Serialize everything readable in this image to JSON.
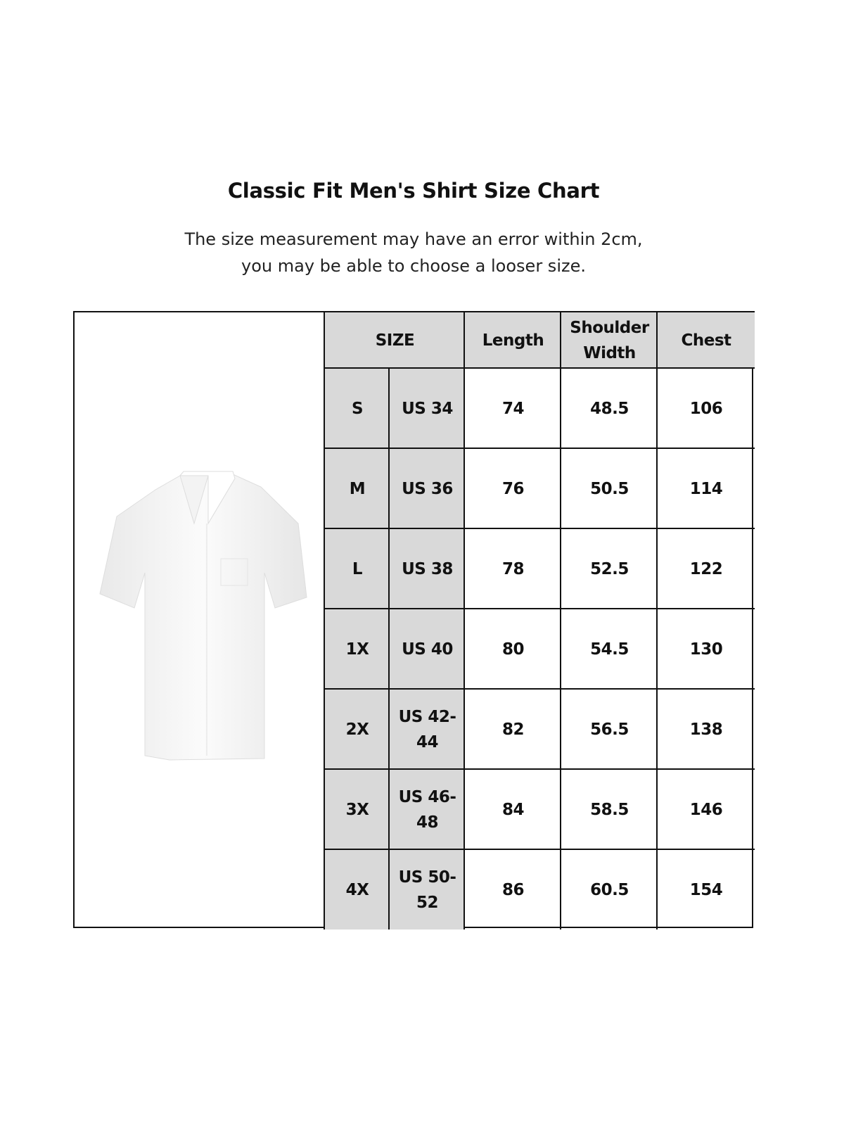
{
  "title": "Classic Fit Men's Shirt Size Chart",
  "subtitle": [
    "The size measurement may have an error within 2cm,",
    "you may be able to choose a looser size."
  ],
  "table": {
    "headers": [
      "SIZE",
      "Length",
      "Shoulder Width",
      "Chest"
    ],
    "rows": [
      [
        "S",
        "US 34",
        "74",
        "48.5",
        "106"
      ],
      [
        "M",
        "US 36",
        "76",
        "50.5",
        "114"
      ],
      [
        "L",
        "US 38",
        "78",
        "52.5",
        "122"
      ],
      [
        "1X",
        "US 40",
        "80",
        "54.5",
        "130"
      ],
      [
        "2X",
        "US 42-44",
        "82",
        "56.5",
        "138"
      ],
      [
        "3X",
        "US 46-48",
        "84",
        "58.5",
        "146"
      ],
      [
        "4X",
        "US 50-52",
        "86",
        "60.5",
        "154"
      ]
    ]
  },
  "colors": {
    "header_bg": "#d9d9d9",
    "border": "#111111"
  }
}
